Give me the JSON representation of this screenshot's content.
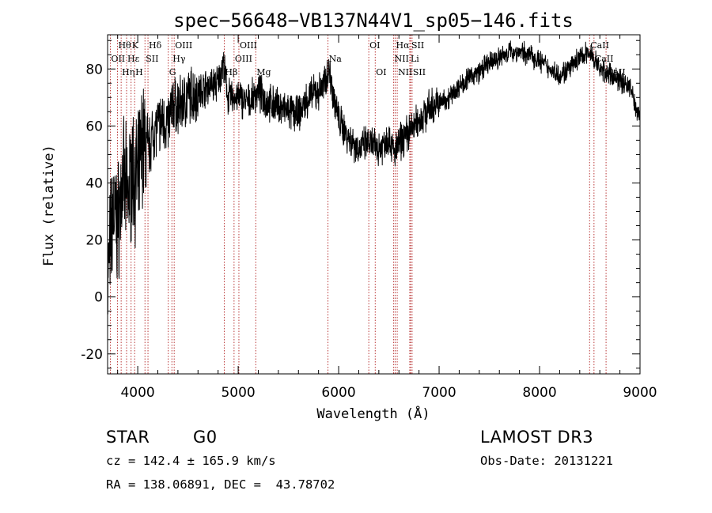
{
  "chart_data": {
    "type": "line",
    "title": "spec−56648−VB137N44V1_sp05−146.fits",
    "xlabel": "Wavelength (Å)",
    "ylabel": "Flux (relative)",
    "xlim": [
      3700,
      9000
    ],
    "ylim": [
      -27,
      92
    ],
    "xticks": [
      4000,
      5000,
      6000,
      7000,
      8000,
      9000
    ],
    "yticks": [
      -20,
      0,
      20,
      40,
      60,
      80
    ],
    "series": [
      {
        "name": "flux",
        "color": "#000000",
        "x": [
          3700,
          3750,
          3800,
          3850,
          3900,
          3950,
          4000,
          4050,
          4100,
          4150,
          4200,
          4250,
          4300,
          4350,
          4400,
          4500,
          4600,
          4700,
          4800,
          4850,
          4900,
          5000,
          5100,
          5200,
          5300,
          5400,
          5500,
          5600,
          5700,
          5800,
          5850,
          5900,
          6000,
          6100,
          6200,
          6300,
          6400,
          6500,
          6560,
          6600,
          6700,
          6800,
          6900,
          7000,
          7100,
          7200,
          7300,
          7400,
          7500,
          7600,
          7700,
          7800,
          7900,
          8000,
          8100,
          8200,
          8300,
          8400,
          8500,
          8600,
          8700,
          8800,
          8900,
          8960,
          9000
        ],
        "y": [
          5,
          30,
          25,
          40,
          35,
          45,
          40,
          55,
          50,
          58,
          60,
          62,
          60,
          68,
          66,
          70,
          72,
          74,
          75,
          82,
          70,
          70,
          68,
          72,
          68,
          67,
          65,
          64,
          70,
          72,
          74,
          80,
          62,
          56,
          52,
          54,
          52,
          56,
          50,
          54,
          58,
          62,
          66,
          68,
          70,
          74,
          77,
          79,
          82,
          84,
          86,
          86,
          85,
          83,
          80,
          78,
          80,
          84,
          86,
          80,
          78,
          76,
          74,
          66,
          65
        ]
      }
    ],
    "line_markers": [
      {
        "label": "Hθ",
        "x": 3798,
        "row": 1
      },
      {
        "label": "OII",
        "x": 3727,
        "row": 2
      },
      {
        "label": "Hη",
        "x": 3835,
        "row": 3
      },
      {
        "label": "K",
        "x": 3934,
        "row": 1
      },
      {
        "label": "Hε",
        "x": 3889,
        "row": 2
      },
      {
        "label": "H",
        "x": 3969,
        "row": 3
      },
      {
        "label": "Hδ",
        "x": 4102,
        "row": 1
      },
      {
        "label": "SII",
        "x": 4072,
        "row": 2
      },
      {
        "label": "OIII",
        "x": 4363,
        "row": 1
      },
      {
        "label": "Hγ",
        "x": 4340,
        "row": 2
      },
      {
        "label": "G",
        "x": 4304,
        "row": 3
      },
      {
        "label": "OIII",
        "x": 5007,
        "row": 1
      },
      {
        "label": "OIII",
        "x": 4959,
        "row": 2
      },
      {
        "label": "Hβ",
        "x": 4861,
        "row": 3
      },
      {
        "label": "Mg",
        "x": 5175,
        "row": 3
      },
      {
        "label": "Na",
        "x": 5894,
        "row": 2
      },
      {
        "label": "OI",
        "x": 6300,
        "row": 1
      },
      {
        "label": "OI",
        "x": 6364,
        "row": 3
      },
      {
        "label": "Hα",
        "x": 6563,
        "row": 1
      },
      {
        "label": "NII",
        "x": 6548,
        "row": 2
      },
      {
        "label": "NII",
        "x": 6583,
        "row": 3
      },
      {
        "label": "SII",
        "x": 6716,
        "row": 1
      },
      {
        "label": "Li",
        "x": 6708,
        "row": 2
      },
      {
        "label": "SII",
        "x": 6731,
        "row": 3
      },
      {
        "label": "CaII",
        "x": 8498,
        "row": 1
      },
      {
        "label": "CaII",
        "x": 8542,
        "row": 2
      },
      {
        "label": "CaII",
        "x": 8662,
        "row": 3
      }
    ]
  },
  "info": {
    "object_class": "STAR",
    "subclass": "G0",
    "survey": "LAMOST DR3",
    "cz": "cz = 142.4 ± 165.9 km/s",
    "obs_date": "Obs-Date: 20131221",
    "coords": "RA = 138.06891, DEC =  43.78702"
  },
  "colors": {
    "spectrum": "#000000",
    "marker_line": "#b22222",
    "axes": "#000000"
  }
}
